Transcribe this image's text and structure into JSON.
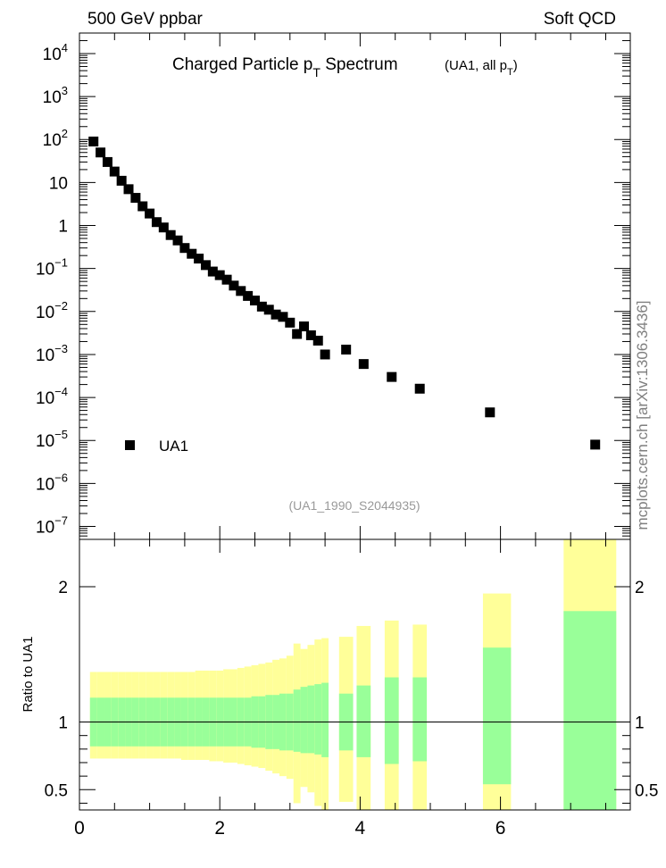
{
  "header": {
    "left": "500 GeV ppbar",
    "right": "Soft QCD"
  },
  "title": {
    "main": "Charged Particle p",
    "main_sub": "T",
    "main_after": " Spectrum",
    "paren_open": "(UA1, all p",
    "paren_sub": "T",
    "paren_close": ")"
  },
  "analysis_id": "(UA1_1990_S2044935)",
  "side_text": "mcplots.cern.ch [arXiv:1306.3436]",
  "legend": {
    "label": "UA1"
  },
  "ratio_ylabel": "Ratio to UA1",
  "colors": {
    "band_inner": "#99ff99",
    "band_outer": "#ffff99",
    "marker": "#000000",
    "analysis_text": "#999999",
    "side_text": "#7f7f7f"
  },
  "chart_data": [
    {
      "type": "scatter",
      "log_y": true,
      "xlim": [
        0,
        7.85
      ],
      "ylim": [
        5e-08,
        30000
      ],
      "y_ticks": [
        {
          "v": 10000.0,
          "base": "10",
          "exp": "4"
        },
        {
          "v": 1000.0,
          "base": "10",
          "exp": "3"
        },
        {
          "v": 100.0,
          "base": "10",
          "exp": "2"
        },
        {
          "v": 10,
          "base": "10",
          "exp": ""
        },
        {
          "v": 1,
          "base": "1",
          "exp": ""
        },
        {
          "v": 0.1,
          "base": "10",
          "exp": "−1"
        },
        {
          "v": 0.01,
          "base": "10",
          "exp": "−2"
        },
        {
          "v": 0.001,
          "base": "10",
          "exp": "−3"
        },
        {
          "v": 0.0001,
          "base": "10",
          "exp": "−4"
        },
        {
          "v": 1e-05,
          "base": "10",
          "exp": "−5"
        },
        {
          "v": 1e-06,
          "base": "10",
          "exp": "−6"
        },
        {
          "v": 1e-07,
          "base": "10",
          "exp": "−7"
        }
      ],
      "series": [
        {
          "name": "UA1",
          "x": [
            0.2,
            0.3,
            0.4,
            0.5,
            0.6,
            0.7,
            0.8,
            0.9,
            1.0,
            1.1,
            1.2,
            1.3,
            1.4,
            1.5,
            1.6,
            1.7,
            1.8,
            1.9,
            2.0,
            2.1,
            2.2,
            2.3,
            2.4,
            2.5,
            2.6,
            2.7,
            2.8,
            2.9,
            3.0,
            3.1,
            3.2,
            3.3,
            3.4,
            3.5,
            3.8,
            4.05,
            4.45,
            4.85,
            5.85,
            7.35
          ],
          "y": [
            90,
            50,
            30,
            18,
            11,
            7,
            4.4,
            2.8,
            1.9,
            1.2,
            0.9,
            0.6,
            0.45,
            0.3,
            0.22,
            0.17,
            0.12,
            0.085,
            0.07,
            0.055,
            0.04,
            0.03,
            0.023,
            0.018,
            0.013,
            0.011,
            0.0085,
            0.0075,
            0.0055,
            0.003,
            0.0045,
            0.0028,
            0.0021,
            0.001,
            0.0013,
            0.0006,
            0.0003,
            0.00016,
            4.5e-05,
            8e-06
          ]
        }
      ]
    },
    {
      "type": "bar",
      "xlim": [
        0,
        7.85
      ],
      "ylim": [
        0.35,
        2.35
      ],
      "y_ticks": [
        {
          "v": 0.5,
          "label": "0.5"
        },
        {
          "v": 1,
          "label": "1"
        },
        {
          "v": 2,
          "label": "2"
        }
      ],
      "x_ticks": [
        {
          "v": 0,
          "label": "0"
        },
        {
          "v": 2,
          "label": "2"
        },
        {
          "v": 4,
          "label": "4"
        },
        {
          "v": 6,
          "label": "6"
        }
      ],
      "reference_line": 1,
      "bins": [
        {
          "x0": 0.15,
          "x1": 0.25,
          "inner": [
            0.82,
            1.18
          ],
          "outer": [
            0.73,
            1.37
          ]
        },
        {
          "x0": 0.25,
          "x1": 0.35,
          "inner": [
            0.82,
            1.18
          ],
          "outer": [
            0.73,
            1.37
          ]
        },
        {
          "x0": 0.35,
          "x1": 0.45,
          "inner": [
            0.82,
            1.18
          ],
          "outer": [
            0.73,
            1.37
          ]
        },
        {
          "x0": 0.45,
          "x1": 0.55,
          "inner": [
            0.82,
            1.18
          ],
          "outer": [
            0.73,
            1.37
          ]
        },
        {
          "x0": 0.55,
          "x1": 0.65,
          "inner": [
            0.82,
            1.18
          ],
          "outer": [
            0.73,
            1.37
          ]
        },
        {
          "x0": 0.65,
          "x1": 0.75,
          "inner": [
            0.82,
            1.18
          ],
          "outer": [
            0.73,
            1.37
          ]
        },
        {
          "x0": 0.75,
          "x1": 0.85,
          "inner": [
            0.82,
            1.18
          ],
          "outer": [
            0.73,
            1.37
          ]
        },
        {
          "x0": 0.85,
          "x1": 0.95,
          "inner": [
            0.82,
            1.18
          ],
          "outer": [
            0.73,
            1.37
          ]
        },
        {
          "x0": 0.95,
          "x1": 1.05,
          "inner": [
            0.82,
            1.18
          ],
          "outer": [
            0.73,
            1.37
          ]
        },
        {
          "x0": 1.05,
          "x1": 1.15,
          "inner": [
            0.82,
            1.18
          ],
          "outer": [
            0.73,
            1.37
          ]
        },
        {
          "x0": 1.15,
          "x1": 1.25,
          "inner": [
            0.82,
            1.18
          ],
          "outer": [
            0.73,
            1.37
          ]
        },
        {
          "x0": 1.25,
          "x1": 1.35,
          "inner": [
            0.82,
            1.18
          ],
          "outer": [
            0.73,
            1.37
          ]
        },
        {
          "x0": 1.35,
          "x1": 1.45,
          "inner": [
            0.82,
            1.18
          ],
          "outer": [
            0.73,
            1.37
          ]
        },
        {
          "x0": 1.45,
          "x1": 1.55,
          "inner": [
            0.82,
            1.18
          ],
          "outer": [
            0.72,
            1.37
          ]
        },
        {
          "x0": 1.55,
          "x1": 1.65,
          "inner": [
            0.82,
            1.18
          ],
          "outer": [
            0.72,
            1.37
          ]
        },
        {
          "x0": 1.65,
          "x1": 1.75,
          "inner": [
            0.82,
            1.18
          ],
          "outer": [
            0.72,
            1.38
          ]
        },
        {
          "x0": 1.75,
          "x1": 1.85,
          "inner": [
            0.82,
            1.18
          ],
          "outer": [
            0.72,
            1.38
          ]
        },
        {
          "x0": 1.85,
          "x1": 1.95,
          "inner": [
            0.82,
            1.18
          ],
          "outer": [
            0.71,
            1.38
          ]
        },
        {
          "x0": 1.95,
          "x1": 2.05,
          "inner": [
            0.82,
            1.18
          ],
          "outer": [
            0.71,
            1.38
          ]
        },
        {
          "x0": 2.05,
          "x1": 2.15,
          "inner": [
            0.82,
            1.18
          ],
          "outer": [
            0.7,
            1.39
          ]
        },
        {
          "x0": 2.15,
          "x1": 2.25,
          "inner": [
            0.82,
            1.18
          ],
          "outer": [
            0.7,
            1.39
          ]
        },
        {
          "x0": 2.25,
          "x1": 2.35,
          "inner": [
            0.82,
            1.18
          ],
          "outer": [
            0.69,
            1.4
          ]
        },
        {
          "x0": 2.35,
          "x1": 2.45,
          "inner": [
            0.82,
            1.18
          ],
          "outer": [
            0.68,
            1.41
          ]
        },
        {
          "x0": 2.45,
          "x1": 2.55,
          "inner": [
            0.81,
            1.19
          ],
          "outer": [
            0.67,
            1.42
          ]
        },
        {
          "x0": 2.55,
          "x1": 2.65,
          "inner": [
            0.81,
            1.19
          ],
          "outer": [
            0.66,
            1.43
          ]
        },
        {
          "x0": 2.65,
          "x1": 2.75,
          "inner": [
            0.8,
            1.2
          ],
          "outer": [
            0.64,
            1.44
          ]
        },
        {
          "x0": 2.75,
          "x1": 2.85,
          "inner": [
            0.8,
            1.2
          ],
          "outer": [
            0.62,
            1.46
          ]
        },
        {
          "x0": 2.85,
          "x1": 2.95,
          "inner": [
            0.79,
            1.21
          ],
          "outer": [
            0.6,
            1.47
          ]
        },
        {
          "x0": 2.95,
          "x1": 3.05,
          "inner": [
            0.79,
            1.21
          ],
          "outer": [
            0.58,
            1.49
          ]
        },
        {
          "x0": 3.05,
          "x1": 3.15,
          "inner": [
            0.78,
            1.24
          ],
          "outer": [
            0.4,
            1.58
          ]
        },
        {
          "x0": 3.15,
          "x1": 3.25,
          "inner": [
            0.77,
            1.26
          ],
          "outer": [
            0.52,
            1.54
          ]
        },
        {
          "x0": 3.25,
          "x1": 3.35,
          "inner": [
            0.77,
            1.27
          ],
          "outer": [
            0.48,
            1.57
          ]
        },
        {
          "x0": 3.35,
          "x1": 3.45,
          "inner": [
            0.76,
            1.28
          ],
          "outer": [
            0.38,
            1.61
          ]
        },
        {
          "x0": 3.45,
          "x1": 3.55,
          "inner": [
            0.74,
            1.29
          ],
          "outer": [
            0.35,
            1.62
          ]
        },
        {
          "x0": 3.7,
          "x1": 3.9,
          "inner": [
            0.79,
            1.21
          ],
          "outer": [
            0.41,
            1.63
          ]
        },
        {
          "x0": 3.95,
          "x1": 4.15,
          "inner": [
            0.74,
            1.27
          ],
          "outer": [
            0.35,
            1.71
          ]
        },
        {
          "x0": 4.35,
          "x1": 4.55,
          "inner": [
            0.69,
            1.33
          ],
          "outer": [
            0.35,
            1.75
          ]
        },
        {
          "x0": 4.75,
          "x1": 4.95,
          "inner": [
            0.71,
            1.33
          ],
          "outer": [
            0.35,
            1.72
          ]
        },
        {
          "x0": 5.75,
          "x1": 6.15,
          "inner": [
            0.54,
            1.55
          ],
          "outer": [
            0.35,
            1.95
          ]
        },
        {
          "x0": 6.9,
          "x1": 7.65,
          "inner": [
            0.35,
            1.82
          ],
          "outer": [
            0.35,
            2.35
          ]
        }
      ]
    }
  ]
}
